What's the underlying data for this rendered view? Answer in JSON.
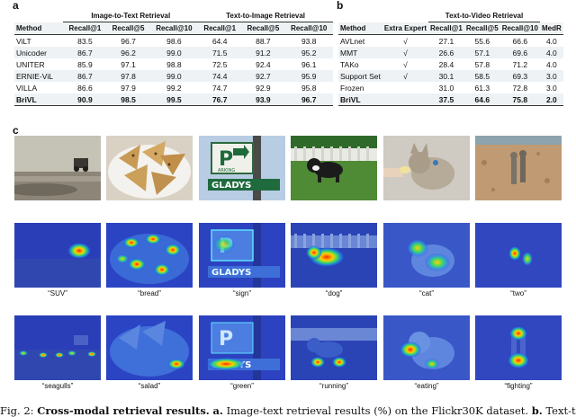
{
  "panel_a": {
    "letter": "a",
    "group_i2t": "Image-to-Text Retrieval",
    "group_t2i": "Text-to-Image Retrieval",
    "headers": [
      "Method",
      "Recall@1",
      "Recall@5",
      "Recall@10",
      "Recall@1",
      "Recall@5",
      "Recall@10"
    ],
    "rows": [
      [
        "ViLT",
        "83.5",
        "96.7",
        "98.6",
        "64.4",
        "88.7",
        "93.8"
      ],
      [
        "Unicoder",
        "86.7",
        "96.2",
        "99.0",
        "71.5",
        "91.2",
        "95.2"
      ],
      [
        "UNITER",
        "85.9",
        "97.1",
        "98.8",
        "72.5",
        "92.4",
        "96.1"
      ],
      [
        "ERNIE-ViL",
        "86.7",
        "97.8",
        "99.0",
        "74.4",
        "92.7",
        "95.9"
      ],
      [
        "VILLA",
        "86.6",
        "97.9",
        "99.2",
        "74.7",
        "92.9",
        "95.8"
      ],
      [
        "BriVL",
        "90.9",
        "98.5",
        "99.5",
        "76.7",
        "93.9",
        "96.7"
      ]
    ]
  },
  "panel_b": {
    "letter": "b",
    "group_t2v": "Text-to-Video Retrieval",
    "headers": [
      "Method",
      "Extra Expert",
      "Recall@1",
      "Recall@5",
      "Recall@10",
      "MedR"
    ],
    "rows": [
      [
        "AVLnet",
        "√",
        "27.1",
        "55.6",
        "66.6",
        "4.0"
      ],
      [
        "MMT",
        "√",
        "26.6",
        "57.1",
        "69.6",
        "4.0"
      ],
      [
        "TAKo",
        "√",
        "28.4",
        "57.8",
        "71.2",
        "4.0"
      ],
      [
        "Support Set",
        "√",
        "30.1",
        "58.5",
        "69.3",
        "3.0"
      ],
      [
        "Frozen",
        "",
        "31.0",
        "61.3",
        "72.8",
        "3.0"
      ],
      [
        "BriVL",
        "",
        "37.5",
        "64.6",
        "75.8",
        "2.0"
      ]
    ]
  },
  "panel_c": {
    "letter": "c",
    "row2_captions": [
      "“SUV”",
      "“bread”",
      "“sign”",
      "“dog”",
      "“cat”",
      "“two”"
    ],
    "row3_captions": [
      "“seagulls”",
      "“salad”",
      "“green”",
      "“running”",
      "“eating”",
      "“fighting”"
    ],
    "sign_text_top": "P",
    "sign_text_arking": "ARKING",
    "sign_text_street": "GLADYS"
  },
  "caption": {
    "fig": "Fig. 2:",
    "title": "Cross-modal retrieval results.",
    "a_label": "a.",
    "a_text": "Image-text retrieval results (%) on the Flickr30K dataset.",
    "b_label": "b.",
    "b_text": "Text-to"
  }
}
